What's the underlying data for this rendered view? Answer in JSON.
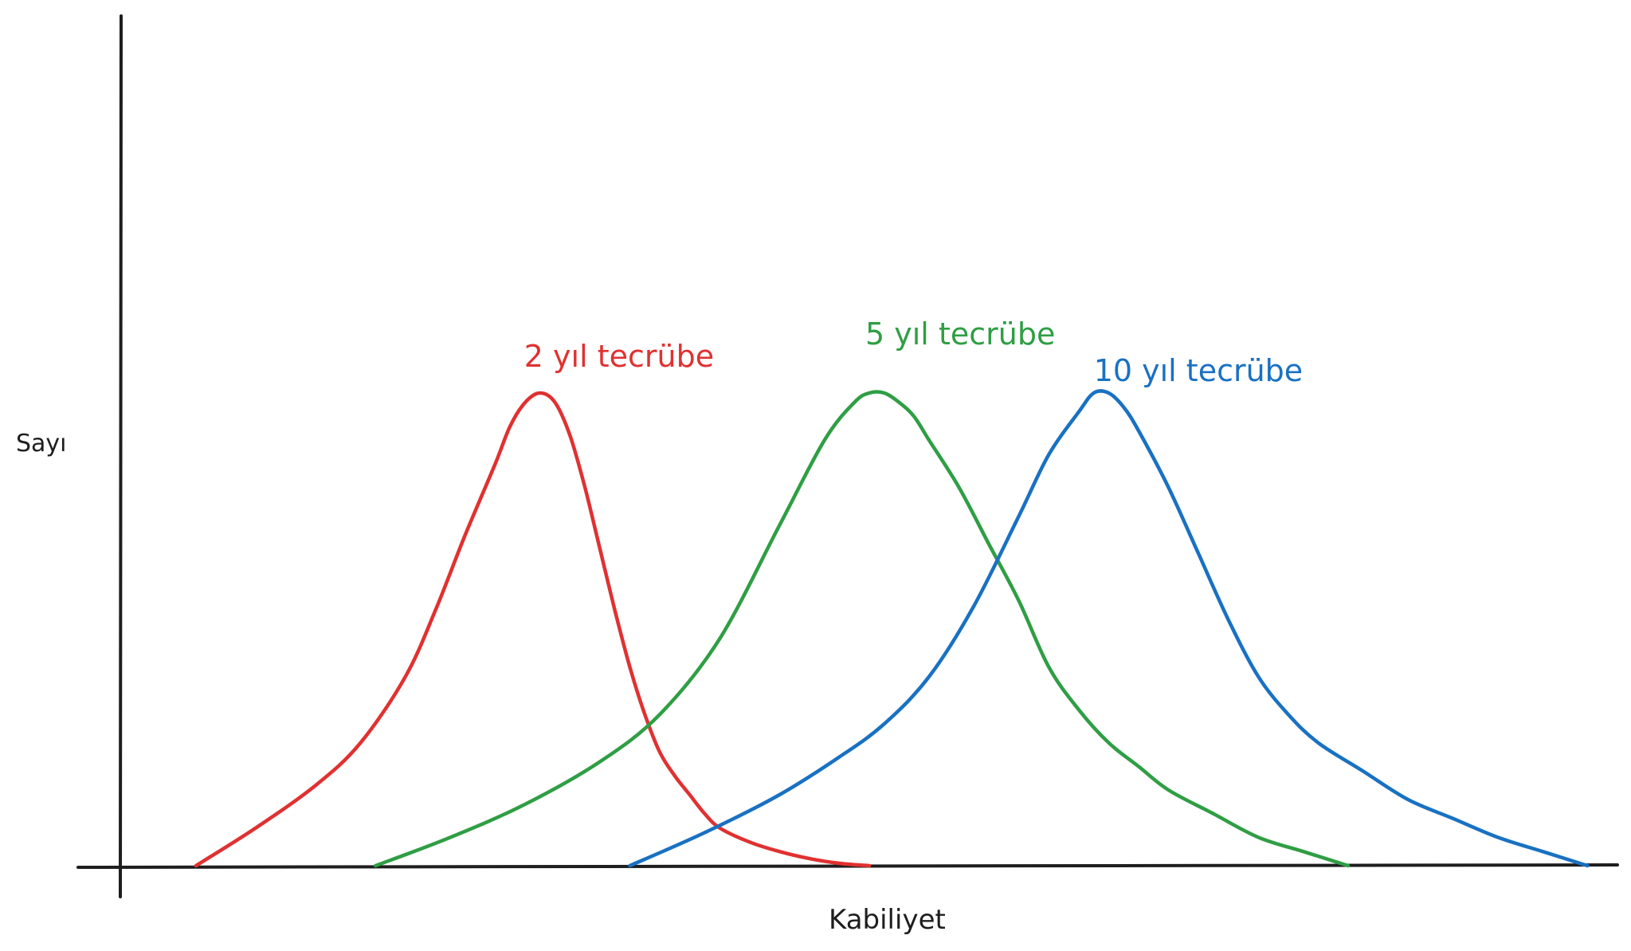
{
  "chart_data": {
    "type": "line",
    "title": "",
    "xlabel": "Kabiliyet",
    "ylabel": "Sayı",
    "grid": false,
    "legend": "inline-labels-above-peaks",
    "xlim": [
      0,
      100
    ],
    "ylim": [
      0,
      100
    ],
    "series": [
      {
        "name": "2 yıl tecrübe",
        "color": "#e03131",
        "x": [
          5,
          9,
          13,
          16,
          19,
          21,
          23,
          25,
          26,
          27,
          28,
          29,
          30,
          31,
          32,
          33,
          34,
          35,
          36,
          37,
          38,
          39,
          40,
          42,
          44,
          46,
          48,
          50
        ],
        "y": [
          0,
          8,
          17,
          26,
          40,
          54,
          70,
          85,
          93,
          98,
          100,
          98,
          91,
          80,
          67,
          54,
          42,
          32,
          24,
          19,
          15,
          11,
          8,
          5,
          3,
          1.5,
          0.5,
          0
        ]
      },
      {
        "name": "5 yıl tecrübe",
        "color": "#2f9e44",
        "x": [
          17,
          22,
          27,
          32,
          36,
          40,
          44,
          47,
          49,
          50,
          51,
          52,
          53,
          54,
          56,
          58,
          60,
          62,
          64,
          66,
          68,
          70,
          73,
          76,
          79,
          82
        ],
        "y": [
          0,
          6,
          13,
          22,
          32,
          48,
          72,
          90,
          98,
          100,
          100,
          98,
          95,
          90,
          80,
          68,
          56,
          42,
          33,
          26,
          21,
          16,
          11,
          6,
          3,
          0
        ]
      },
      {
        "name": "10 yıl tecrübe",
        "color": "#1971c2",
        "x": [
          34,
          39,
          44,
          48,
          51,
          54,
          57,
          60,
          62,
          64,
          65,
          66,
          67,
          68,
          70,
          72,
          74,
          76,
          78,
          80,
          83,
          86,
          89,
          92,
          95,
          98
        ],
        "y": [
          0,
          7,
          15,
          23,
          30,
          40,
          55,
          74,
          87,
          96,
          100,
          100,
          97,
          92,
          80,
          66,
          52,
          40,
          32,
          26,
          20,
          14,
          10,
          6,
          3,
          0
        ]
      }
    ]
  }
}
